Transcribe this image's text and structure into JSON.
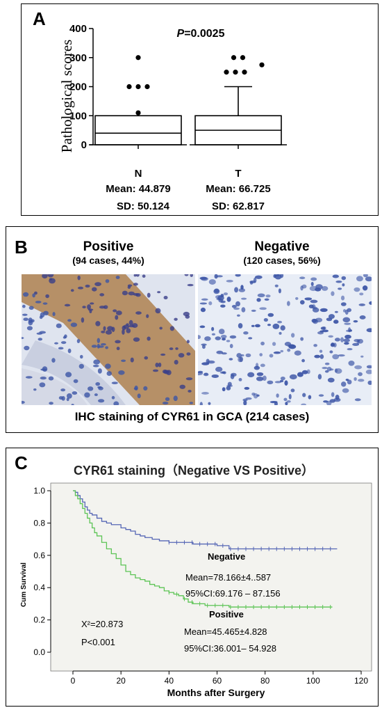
{
  "panel_a": {
    "label": "A",
    "p_prefix": "P",
    "p_value": "=0.0025",
    "groups": [
      {
        "name": "N",
        "mean_label": "Mean: 44.879",
        "sd_label": "SD: 50.124"
      },
      {
        "name": "T",
        "mean_label": "Mean: 66.725",
        "sd_label": "SD: 62.817"
      }
    ]
  },
  "panel_b": {
    "label": "B",
    "positive_title": "Positive",
    "positive_sub": "(94 cases, 44%)",
    "negative_title": "Negative",
    "negative_sub": "(120 cases, 56%)",
    "caption": "IHC staining of CYR61 in GCA (214 cases)",
    "colors": {
      "stain_brown": "#a8743a",
      "nuclei_blue": "#3c55a6",
      "background": "#e8edf6"
    }
  },
  "panel_c": {
    "label": "C",
    "negative_label": "Negative",
    "negative_mean": "Mean=78.166±4..587",
    "negative_ci": "95%CI:69.176 – 87.156",
    "positive_label": "Positive",
    "positive_mean": "Mean=45.465±4.828",
    "positive_ci": "95%CI:36.001– 54.928",
    "chi_square": "Χ²=20.873",
    "p_text": "P<0.001",
    "colors": {
      "negative": "#5566b5",
      "positive": "#5cc455",
      "plot_bg": "#f3f3ef"
    }
  },
  "chart_data": [
    {
      "type": "box",
      "ylabel": "Pathological scores",
      "ylim": [
        0,
        400
      ],
      "yticks": [
        0,
        100,
        200,
        300,
        400
      ],
      "categories": [
        "N",
        "T"
      ],
      "boxes": [
        {
          "name": "N",
          "min": 0,
          "q1": 0,
          "median": 40,
          "q3": 100,
          "max": 100,
          "outliers": [
            110,
            200,
            200,
            200,
            300
          ]
        },
        {
          "name": "T",
          "min": 0,
          "q1": 0,
          "median": 50,
          "q3": 100,
          "max": 200,
          "outliers": [
            250,
            250,
            250,
            275,
            300,
            300
          ]
        }
      ]
    },
    {
      "type": "line",
      "title": "CYR61 staining（Negative VS Positive）",
      "xlabel": "Months after Surgery",
      "ylabel": "Cum Survival",
      "xlim": [
        0,
        120
      ],
      "ylim": [
        0,
        1.0
      ],
      "xticks": [
        0,
        20,
        40,
        60,
        80,
        100,
        120
      ],
      "yticks": [
        0.0,
        0.2,
        0.4,
        0.6,
        0.8,
        1.0
      ],
      "series": [
        {
          "name": "Negative",
          "x": [
            0,
            1,
            2,
            3,
            4,
            5,
            6,
            7,
            8,
            10,
            12,
            14,
            16,
            18,
            20,
            22,
            24,
            26,
            28,
            30,
            33,
            36,
            40,
            45,
            50,
            55,
            60,
            65,
            70,
            80,
            90,
            100,
            110
          ],
          "y": [
            1.0,
            0.99,
            0.97,
            0.95,
            0.93,
            0.9,
            0.88,
            0.86,
            0.85,
            0.83,
            0.81,
            0.8,
            0.79,
            0.79,
            0.77,
            0.76,
            0.75,
            0.73,
            0.72,
            0.71,
            0.7,
            0.69,
            0.68,
            0.68,
            0.67,
            0.67,
            0.66,
            0.64,
            0.64,
            0.64,
            0.64,
            0.64,
            0.64
          ]
        },
        {
          "name": "Positive",
          "x": [
            0,
            1,
            2,
            3,
            4,
            5,
            6,
            7,
            8,
            9,
            10,
            12,
            14,
            16,
            18,
            20,
            22,
            24,
            26,
            28,
            30,
            32,
            34,
            36,
            38,
            40,
            42,
            44,
            46,
            48,
            50,
            55,
            60,
            65,
            70,
            80,
            90,
            100,
            108
          ],
          "y": [
            1.0,
            0.97,
            0.95,
            0.92,
            0.89,
            0.86,
            0.83,
            0.8,
            0.77,
            0.74,
            0.72,
            0.68,
            0.64,
            0.61,
            0.58,
            0.54,
            0.5,
            0.48,
            0.46,
            0.45,
            0.44,
            0.42,
            0.41,
            0.4,
            0.38,
            0.37,
            0.36,
            0.35,
            0.33,
            0.31,
            0.3,
            0.29,
            0.29,
            0.28,
            0.28,
            0.28,
            0.28,
            0.28,
            0.28
          ]
        }
      ],
      "censor_ticks": true,
      "grid": false
    }
  ]
}
